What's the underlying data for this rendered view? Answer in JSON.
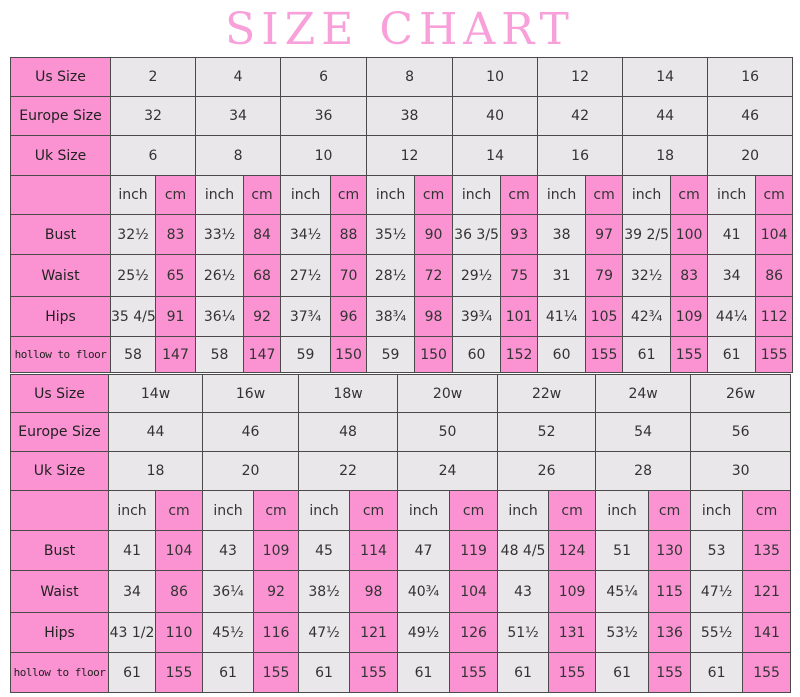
{
  "title": "SIZE CHART",
  "colors": {
    "pink": "#fb93d3",
    "gray": "#e9e7e9",
    "title": "#f7a0d9"
  },
  "tables": [
    {
      "size_rows": [
        {
          "label": "Us Size",
          "values": [
            "2",
            "4",
            "6",
            "8",
            "10",
            "12",
            "14",
            "16"
          ]
        },
        {
          "label": "Europe Size",
          "values": [
            "32",
            "34",
            "36",
            "38",
            "40",
            "42",
            "44",
            "46"
          ]
        },
        {
          "label": "Uk Size",
          "values": [
            "6",
            "8",
            "10",
            "12",
            "14",
            "16",
            "18",
            "20"
          ]
        }
      ],
      "units": {
        "inch": "inch",
        "cm": "cm"
      },
      "measure_rows": [
        {
          "label": "Bust",
          "values": [
            "32½",
            "83",
            "33½",
            "84",
            "34½",
            "88",
            "35½",
            "90",
            "36 3/5",
            "93",
            "38",
            "97",
            "39 2/5",
            "100",
            "41",
            "104"
          ]
        },
        {
          "label": "Waist",
          "values": [
            "25½",
            "65",
            "26½",
            "68",
            "27½",
            "70",
            "28½",
            "72",
            "29½",
            "75",
            "31",
            "79",
            "32½",
            "83",
            "34",
            "86"
          ]
        },
        {
          "label": "Hips",
          "values": [
            "35 4/5",
            "91",
            "36¼",
            "92",
            "37¾",
            "96",
            "38¾",
            "98",
            "39¾",
            "101",
            "41¼",
            "105",
            "42¾",
            "109",
            "44¼",
            "112"
          ]
        },
        {
          "label": "hollow to floor",
          "values": [
            "58",
            "147",
            "58",
            "147",
            "59",
            "150",
            "59",
            "150",
            "60",
            "152",
            "60",
            "155",
            "61",
            "155",
            "61",
            "155"
          ]
        }
      ]
    },
    {
      "size_rows": [
        {
          "label": "Us Size",
          "values": [
            "14w",
            "16w",
            "18w",
            "20w",
            "22w",
            "24w",
            "26w"
          ]
        },
        {
          "label": "Europe Size",
          "values": [
            "44",
            "46",
            "48",
            "50",
            "52",
            "54",
            "56"
          ]
        },
        {
          "label": "Uk Size",
          "values": [
            "18",
            "20",
            "22",
            "24",
            "26",
            "28",
            "30"
          ]
        }
      ],
      "units": {
        "inch": "inch",
        "cm": "cm"
      },
      "measure_rows": [
        {
          "label": "Bust",
          "values": [
            "41",
            "104",
            "43",
            "109",
            "45",
            "114",
            "47",
            "119",
            "48 4/5",
            "124",
            "51",
            "130",
            "53",
            "135"
          ]
        },
        {
          "label": "Waist",
          "values": [
            "34",
            "86",
            "36¼",
            "92",
            "38½",
            "98",
            "40¾",
            "104",
            "43",
            "109",
            "45¼",
            "115",
            "47½",
            "121"
          ]
        },
        {
          "label": "Hips",
          "values": [
            "43 1/2",
            "110",
            "45½",
            "116",
            "47½",
            "121",
            "49½",
            "126",
            "51½",
            "131",
            "53½",
            "136",
            "55½",
            "141"
          ]
        },
        {
          "label": "hollow to floor",
          "values": [
            "61",
            "155",
            "61",
            "155",
            "61",
            "155",
            "61",
            "155",
            "61",
            "155",
            "61",
            "155",
            "61",
            "155"
          ]
        }
      ]
    }
  ]
}
